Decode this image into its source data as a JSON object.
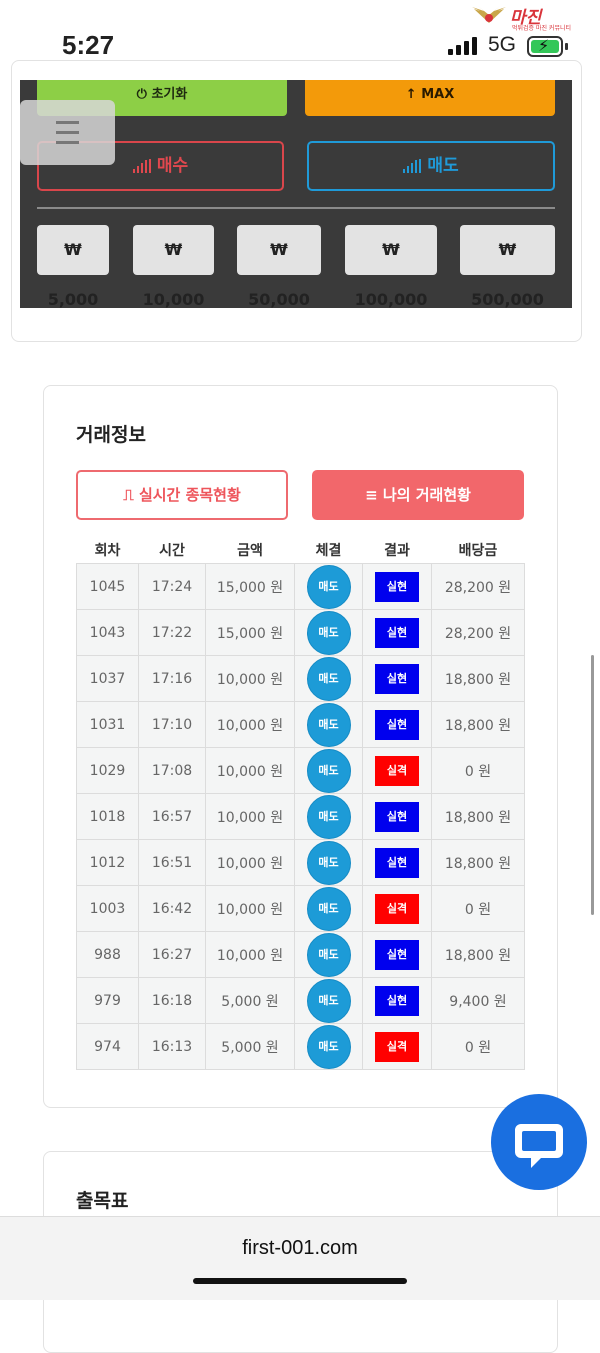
{
  "status_bar": {
    "time": "5:27",
    "network": "5G",
    "battery_charging": true
  },
  "watermark": {
    "title": "마진",
    "subtitle": "먹튀검증 마진 커뮤니티"
  },
  "controls": {
    "reset_label": "초기화",
    "max_label": "MAX",
    "buy_label": "매수",
    "sell_label": "매도",
    "amounts": [
      "₩ 5,000",
      "₩ 10,000",
      "₩ 50,000",
      "₩ 100,000",
      "₩ 500,000"
    ]
  },
  "trade_info": {
    "title": "거래정보",
    "tab_realtime": "실시간 종목현황",
    "tab_mine": "나의 거래현황",
    "columns": [
      "회차",
      "시간",
      "금액",
      "체결",
      "결과",
      "배당금"
    ],
    "rows": [
      {
        "round": "1045",
        "time": "17:24",
        "amount": "15,000 원",
        "fill": "매도",
        "result": "실현",
        "payout": "28,200 원"
      },
      {
        "round": "1043",
        "time": "17:22",
        "amount": "15,000 원",
        "fill": "매도",
        "result": "실현",
        "payout": "28,200 원"
      },
      {
        "round": "1037",
        "time": "17:16",
        "amount": "10,000 원",
        "fill": "매도",
        "result": "실현",
        "payout": "18,800 원"
      },
      {
        "round": "1031",
        "time": "17:10",
        "amount": "10,000 원",
        "fill": "매도",
        "result": "실현",
        "payout": "18,800 원"
      },
      {
        "round": "1029",
        "time": "17:08",
        "amount": "10,000 원",
        "fill": "매도",
        "result": "실격",
        "payout": "0 원"
      },
      {
        "round": "1018",
        "time": "16:57",
        "amount": "10,000 원",
        "fill": "매도",
        "result": "실현",
        "payout": "18,800 원"
      },
      {
        "round": "1012",
        "time": "16:51",
        "amount": "10,000 원",
        "fill": "매도",
        "result": "실현",
        "payout": "18,800 원"
      },
      {
        "round": "1003",
        "time": "16:42",
        "amount": "10,000 원",
        "fill": "매도",
        "result": "실격",
        "payout": "0 원"
      },
      {
        "round": "988",
        "time": "16:27",
        "amount": "10,000 원",
        "fill": "매도",
        "result": "실현",
        "payout": "18,800 원"
      },
      {
        "round": "979",
        "time": "16:18",
        "amount": "5,000 원",
        "fill": "매도",
        "result": "실현",
        "payout": "9,400 원"
      },
      {
        "round": "974",
        "time": "16:13",
        "amount": "5,000 원",
        "fill": "매도",
        "result": "실격",
        "payout": "0 원"
      }
    ]
  },
  "schedule": {
    "title": "출목표"
  },
  "browser": {
    "url": "first-001.com"
  },
  "colors": {
    "win": "#0000ee",
    "lose": "#ff0000",
    "sell": "#1d9bd7",
    "buy": "#d9464b"
  }
}
